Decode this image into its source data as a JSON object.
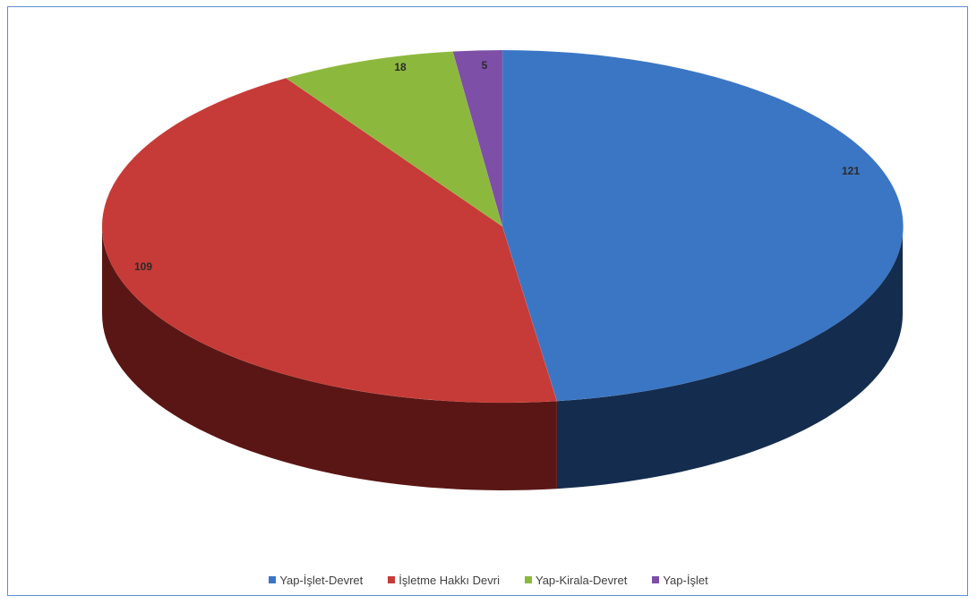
{
  "chart_data": {
    "type": "pie",
    "style": "3d",
    "slices": [
      {
        "name": "Yap-İşlet-Devret",
        "value": 121,
        "color": "#3a76c4",
        "dark_color": "#142c4e"
      },
      {
        "name": "İşletme Hakkı Devri",
        "value": 109,
        "color": "#c63b37",
        "dark_color": "#5a1615"
      },
      {
        "name": "Yap-Kirala-Devret",
        "value": 18,
        "color": "#8db83e",
        "dark_color": "#4d6a1d"
      },
      {
        "name": "Yap-İşlet",
        "value": 5,
        "color": "#7d4fa6",
        "dark_color": "#3d2356"
      }
    ],
    "data_labels": [
      "121",
      "109",
      "18",
      "5"
    ],
    "legend_position": "bottom",
    "start_angle": "top",
    "direction": "clockwise"
  }
}
